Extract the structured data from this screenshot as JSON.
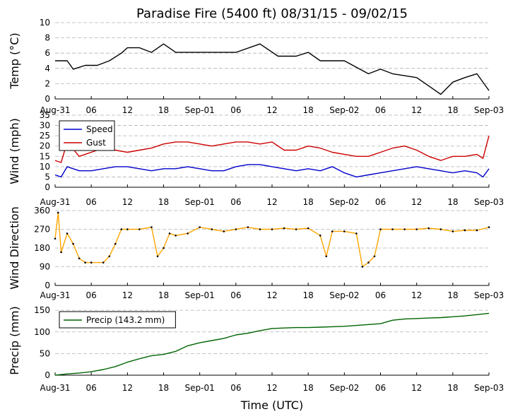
{
  "title": "Paradise Fire (5400 ft) 08/31/15 - 09/02/15",
  "xlabel": "Time (UTC)",
  "time_ticks": [
    "Aug-31",
    "06",
    "12",
    "18",
    "Sep-01",
    "06",
    "12",
    "18",
    "Sep-02",
    "06",
    "12",
    "18",
    "Sep-03"
  ],
  "colors": {
    "temp": "#000000",
    "speed": "#0000cc",
    "gust": "#cc0000",
    "direction": "#ffa500",
    "precip": "#006400",
    "grid": "#b0b0b0"
  },
  "chart_data": [
    {
      "type": "line",
      "ylabel": "Temp ($^\\circ$C)",
      "ylabel_text": "Temp (°C)",
      "ylim": [
        0,
        10
      ],
      "yticks": [
        "0",
        "2",
        "4",
        "6",
        "8",
        "10"
      ],
      "grid": true,
      "series": [
        {
          "key": "temp",
          "hours": [
            0,
            2,
            3,
            5,
            7,
            9,
            11,
            12,
            14,
            16,
            18,
            20,
            22,
            24,
            30,
            34,
            37,
            40,
            42,
            44,
            46,
            48,
            52,
            54,
            56,
            60,
            62,
            64,
            66,
            68,
            70,
            72
          ],
          "values": [
            5,
            5,
            3.9,
            4.4,
            4.4,
            5,
            6,
            6.7,
            6.7,
            6.1,
            7.2,
            6.1,
            6.1,
            6.1,
            6.1,
            7.2,
            5.6,
            5.6,
            6.1,
            5,
            5,
            5,
            3.3,
            3.9,
            3.3,
            2.8,
            1.7,
            0.6,
            2.2,
            2.8,
            3.3,
            1.1
          ]
        }
      ]
    },
    {
      "type": "line",
      "ylabel": "Wind (mph)",
      "ylim": [
        0,
        35
      ],
      "yticks": [
        "0",
        "5",
        "10",
        "15",
        "20",
        "25",
        "30",
        "35"
      ],
      "grid": true,
      "legend": "top-left",
      "series": [
        {
          "key": "speed",
          "name": "Speed",
          "hours": [
            0,
            1,
            2,
            4,
            6,
            8,
            10,
            12,
            14,
            16,
            18,
            20,
            22,
            24,
            26,
            28,
            30,
            32,
            34,
            36,
            38,
            40,
            42,
            44,
            46,
            48,
            50,
            52,
            54,
            56,
            58,
            60,
            62,
            64,
            66,
            68,
            70,
            71,
            72
          ],
          "values": [
            6,
            5,
            10,
            8,
            8,
            9,
            10,
            10,
            9,
            8,
            9,
            9,
            10,
            9,
            8,
            8,
            10,
            11,
            11,
            10,
            9,
            8,
            9,
            8,
            10,
            7,
            5,
            6,
            7,
            8,
            9,
            10,
            9,
            8,
            7,
            8,
            7,
            5,
            9
          ]
        },
        {
          "key": "gust",
          "name": "Gust",
          "hours": [
            0,
            1,
            2,
            4,
            6,
            8,
            10,
            12,
            14,
            16,
            18,
            20,
            22,
            24,
            26,
            28,
            30,
            32,
            34,
            36,
            38,
            40,
            42,
            44,
            46,
            48,
            50,
            52,
            54,
            56,
            58,
            60,
            62,
            64,
            66,
            68,
            70,
            71,
            72
          ],
          "values": [
            13,
            12,
            22,
            15,
            17,
            19,
            18,
            17,
            18,
            19,
            21,
            22,
            22,
            21,
            20,
            21,
            22,
            22,
            21,
            22,
            18,
            18,
            20,
            19,
            17,
            16,
            15,
            15,
            17,
            19,
            20,
            18,
            15,
            13,
            15,
            15,
            16,
            14,
            25
          ]
        }
      ]
    },
    {
      "type": "line",
      "ylabel": "Wind Direction",
      "ylim": [
        0,
        360
      ],
      "yticks": [
        "0",
        "90",
        "180",
        "270",
        "360"
      ],
      "grid": true,
      "series": [
        {
          "key": "direction",
          "hours": [
            0,
            0.5,
            1,
            2,
            3,
            4,
            5,
            6,
            8,
            9,
            10,
            11,
            12,
            14,
            16,
            17,
            18,
            19,
            20,
            22,
            24,
            26,
            28,
            30,
            32,
            34,
            36,
            38,
            40,
            42,
            44,
            45,
            46,
            48,
            50,
            51,
            52,
            53,
            54,
            56,
            58,
            60,
            62,
            64,
            66,
            68,
            70,
            72
          ],
          "values": [
            225,
            350,
            160,
            250,
            200,
            130,
            110,
            110,
            110,
            140,
            200,
            270,
            270,
            270,
            280,
            140,
            180,
            250,
            240,
            250,
            280,
            270,
            260,
            270,
            280,
            270,
            270,
            275,
            270,
            275,
            240,
            140,
            260,
            260,
            250,
            90,
            110,
            140,
            270,
            270,
            270,
            270,
            275,
            270,
            260,
            265,
            265,
            280
          ]
        }
      ]
    },
    {
      "type": "line",
      "ylabel": "Precip (mm)",
      "ylim": [
        0,
        160
      ],
      "yticks": [
        "0",
        "50",
        "100",
        "150"
      ],
      "grid": true,
      "legend": "top-left",
      "series": [
        {
          "key": "precip",
          "name": "Precip (143.2 mm)",
          "hours": [
            0,
            2,
            4,
            6,
            8,
            10,
            12,
            14,
            16,
            18,
            20,
            22,
            24,
            26,
            28,
            30,
            32,
            34,
            36,
            38,
            40,
            42,
            44,
            46,
            48,
            50,
            52,
            54,
            56,
            58,
            60,
            62,
            64,
            66,
            68,
            70,
            72
          ],
          "values": [
            0,
            3,
            5,
            8,
            13,
            20,
            30,
            38,
            45,
            48,
            55,
            68,
            75,
            80,
            85,
            93,
            97,
            103,
            108,
            109,
            110,
            110,
            111,
            112,
            113,
            115,
            117,
            119,
            127,
            130,
            131,
            132,
            133,
            135,
            137,
            140,
            143
          ]
        }
      ]
    }
  ]
}
